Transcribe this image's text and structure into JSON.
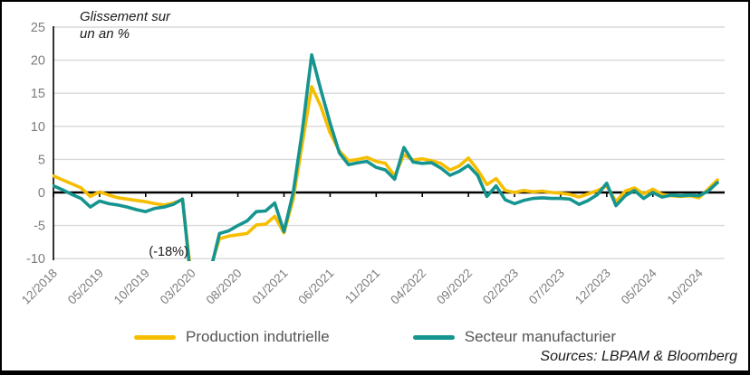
{
  "chart": {
    "title_line1": "Glissement sur",
    "title_line2": "un an %"
  },
  "sources": {
    "text": "Sources: LBPAM & Bloomberg"
  },
  "chart_data": {
    "type": "line",
    "title": "Glissement sur un an %",
    "ylim": [
      -10,
      25
    ],
    "yticks": [
      25,
      20,
      15,
      10,
      5,
      0,
      -5,
      -10
    ],
    "grid": "horizontal",
    "legend_position": "bottom",
    "x_tick_labels": [
      "12/2018",
      "05/2019",
      "10/2019",
      "03/2020",
      "08/2020",
      "01/2021",
      "06/2021",
      "11/2021",
      "04/2022",
      "09/2022",
      "02/2023",
      "07/2023",
      "12/2023",
      "05/2024",
      "10/2024"
    ],
    "annotation": {
      "text": "(-18%)",
      "x": "04/2020"
    },
    "categories": [
      "12/2018",
      "01/2019",
      "02/2019",
      "03/2019",
      "04/2019",
      "05/2019",
      "06/2019",
      "07/2019",
      "08/2019",
      "09/2019",
      "10/2019",
      "11/2019",
      "12/2019",
      "01/2020",
      "02/2020",
      "03/2020",
      "04/2020",
      "05/2020",
      "06/2020",
      "07/2020",
      "08/2020",
      "09/2020",
      "10/2020",
      "11/2020",
      "12/2020",
      "01/2021",
      "02/2021",
      "03/2021",
      "04/2021",
      "05/2021",
      "06/2021",
      "07/2021",
      "08/2021",
      "09/2021",
      "10/2021",
      "11/2021",
      "12/2021",
      "01/2022",
      "02/2022",
      "03/2022",
      "04/2022",
      "05/2022",
      "06/2022",
      "07/2022",
      "08/2022",
      "09/2022",
      "10/2022",
      "11/2022",
      "12/2022",
      "01/2023",
      "02/2023",
      "03/2023",
      "04/2023",
      "05/2023",
      "06/2023",
      "07/2023",
      "08/2023",
      "09/2023",
      "10/2023",
      "11/2023",
      "12/2023",
      "01/2024",
      "02/2024",
      "03/2024",
      "04/2024",
      "05/2024",
      "06/2024",
      "07/2024",
      "08/2024",
      "09/2024",
      "10/2024",
      "11/2024",
      "12/2024"
    ],
    "series": [
      {
        "name": "Production indutrielle",
        "color": "#F6BE00",
        "values": [
          2.5,
          1.9,
          1.3,
          0.7,
          -0.6,
          0.1,
          -0.4,
          -0.8,
          -1.0,
          -1.2,
          -1.4,
          -1.7,
          -1.9,
          -1.6,
          -1.1,
          -13.5,
          -18.0,
          -11.5,
          -7.0,
          -6.6,
          -6.4,
          -6.2,
          -4.9,
          -4.8,
          -3.6,
          -6.1,
          -1.0,
          7.5,
          16.0,
          13.0,
          9.0,
          6.3,
          4.8,
          5.0,
          5.3,
          4.7,
          4.4,
          2.5,
          5.7,
          4.9,
          5.1,
          4.8,
          4.4,
          3.4,
          4.0,
          5.2,
          3.4,
          1.2,
          2.1,
          0.3,
          0.0,
          0.3,
          0.1,
          0.2,
          0.0,
          -0.1,
          -0.3,
          -0.7,
          -0.2,
          0.3,
          1.0,
          -1.4,
          0.2,
          0.7,
          -0.2,
          0.5,
          -0.3,
          -0.5,
          -0.6,
          -0.5,
          -0.8,
          0.5,
          1.9
        ]
      },
      {
        "name": "Secteur manufacturier",
        "color": "#159490",
        "values": [
          1.0,
          0.4,
          -0.3,
          -0.9,
          -2.2,
          -1.3,
          -1.7,
          -1.9,
          -2.2,
          -2.6,
          -2.9,
          -2.4,
          -2.2,
          -1.8,
          -1.0,
          -14.5,
          -18.5,
          -12.0,
          -6.2,
          -5.8,
          -5.0,
          -4.3,
          -2.9,
          -2.8,
          -1.6,
          -5.9,
          0.0,
          9.5,
          20.8,
          15.5,
          10.5,
          6.0,
          4.2,
          4.5,
          4.7,
          3.8,
          3.4,
          2.0,
          6.8,
          4.6,
          4.4,
          4.5,
          3.7,
          2.6,
          3.2,
          4.1,
          2.6,
          -0.6,
          1.0,
          -1.1,
          -1.7,
          -1.2,
          -0.9,
          -0.8,
          -0.9,
          -0.9,
          -1.0,
          -1.8,
          -1.2,
          -0.3,
          1.4,
          -2.0,
          -0.5,
          0.3,
          -0.9,
          0.0,
          -0.7,
          -0.4,
          -0.5,
          -0.4,
          -0.5,
          0.2,
          1.5
        ]
      }
    ]
  }
}
